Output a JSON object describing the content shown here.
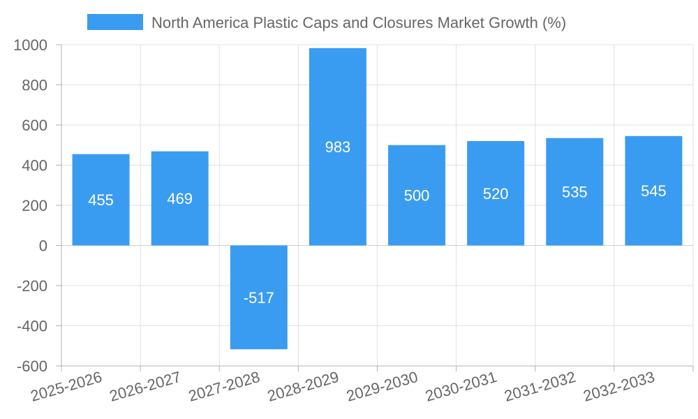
{
  "chart_data": {
    "type": "bar",
    "categories": [
      "2025-2026",
      "2026-2027",
      "2027-2028",
      "2028-2029",
      "2029-2030",
      "2030-2031",
      "2031-2032",
      "2032-2033"
    ],
    "series": [
      {
        "name": "North America Plastic Caps and Closures Market Growth (%)",
        "values": [
          455,
          469,
          -517,
          983,
          500,
          520,
          535,
          545
        ],
        "color": "#3a9cf0"
      }
    ],
    "ylim": [
      -600,
      1000
    ],
    "yticks": [
      1000,
      800,
      600,
      400,
      200,
      0,
      -200,
      -400,
      -600
    ],
    "grid": true,
    "legend_position": "top-center",
    "data_labels": true,
    "x_tick_rotation": "rotated"
  },
  "colors": {
    "bar": "#3a9cf0",
    "grid": "#e0e0e0",
    "axis": "#b0b0b0",
    "text": "#666666",
    "data_label": "#ffffff"
  }
}
